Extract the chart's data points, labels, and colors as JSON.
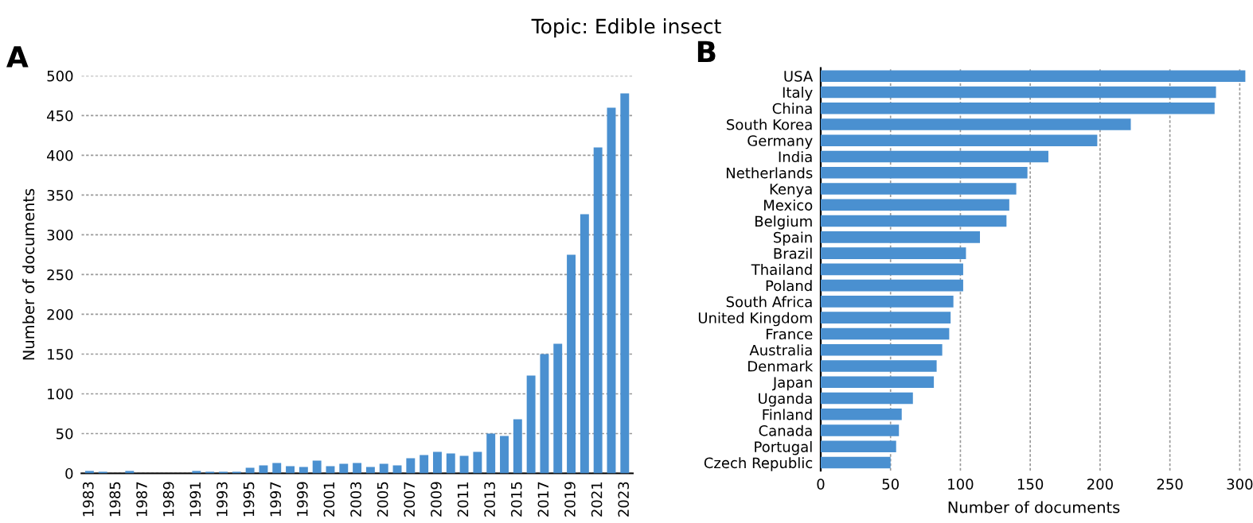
{
  "chart_data": [
    {
      "type": "bar",
      "title": "Topic: Edible insect",
      "annotations": [
        "A"
      ],
      "ylabel": "Number of documents",
      "categories": [
        "1983",
        null,
        "1985",
        null,
        "1987",
        null,
        "1989",
        null,
        "1991",
        null,
        "1993",
        null,
        "1995",
        null,
        "1997",
        null,
        "1999",
        null,
        "2001",
        null,
        "2003",
        null,
        "2005",
        null,
        "2007",
        null,
        "2009",
        null,
        "2011",
        null,
        "2013",
        null,
        "2015",
        null,
        "2017",
        null,
        "2019",
        null,
        "2021",
        null,
        "2023"
      ],
      "values": [
        3,
        2,
        0,
        3,
        0,
        0,
        0,
        0,
        3,
        2,
        2,
        2,
        7,
        10,
        13,
        9,
        8,
        16,
        9,
        12,
        13,
        8,
        12,
        10,
        19,
        23,
        27,
        25,
        22,
        27,
        50,
        47,
        68,
        123,
        150,
        163,
        275,
        326,
        410,
        460,
        478
      ],
      "color": "#4a90d0",
      "ylim": [
        0,
        500
      ],
      "yticks": [
        0,
        50,
        100,
        150,
        200,
        250,
        300,
        350,
        400,
        450,
        500
      ],
      "grid": "y"
    },
    {
      "type": "bar",
      "orientation": "horizontal",
      "annotations": [
        "B"
      ],
      "xlabel": "Number of documents",
      "categories": [
        "USA",
        "Italy",
        "China",
        "South Korea",
        "Germany",
        "India",
        "Netherlands",
        "Kenya",
        "Mexico",
        "Belgium",
        "Spain",
        "Brazil",
        "Thailand",
        "Poland",
        "South Africa",
        "United Kingdom",
        "France",
        "Australia",
        "Denmark",
        "Japan",
        "Uganda",
        "Finland",
        "Canada",
        "Portugal",
        "Czech Republic"
      ],
      "values": [
        304,
        283,
        282,
        222,
        198,
        163,
        148,
        140,
        135,
        133,
        114,
        104,
        102,
        102,
        95,
        93,
        92,
        87,
        83,
        81,
        66,
        58,
        56,
        54,
        50
      ],
      "color": "#4a90d0",
      "xlim": [
        0,
        305
      ],
      "xticks": [
        0,
        50,
        100,
        150,
        200,
        250,
        300
      ],
      "grid": "x"
    }
  ]
}
